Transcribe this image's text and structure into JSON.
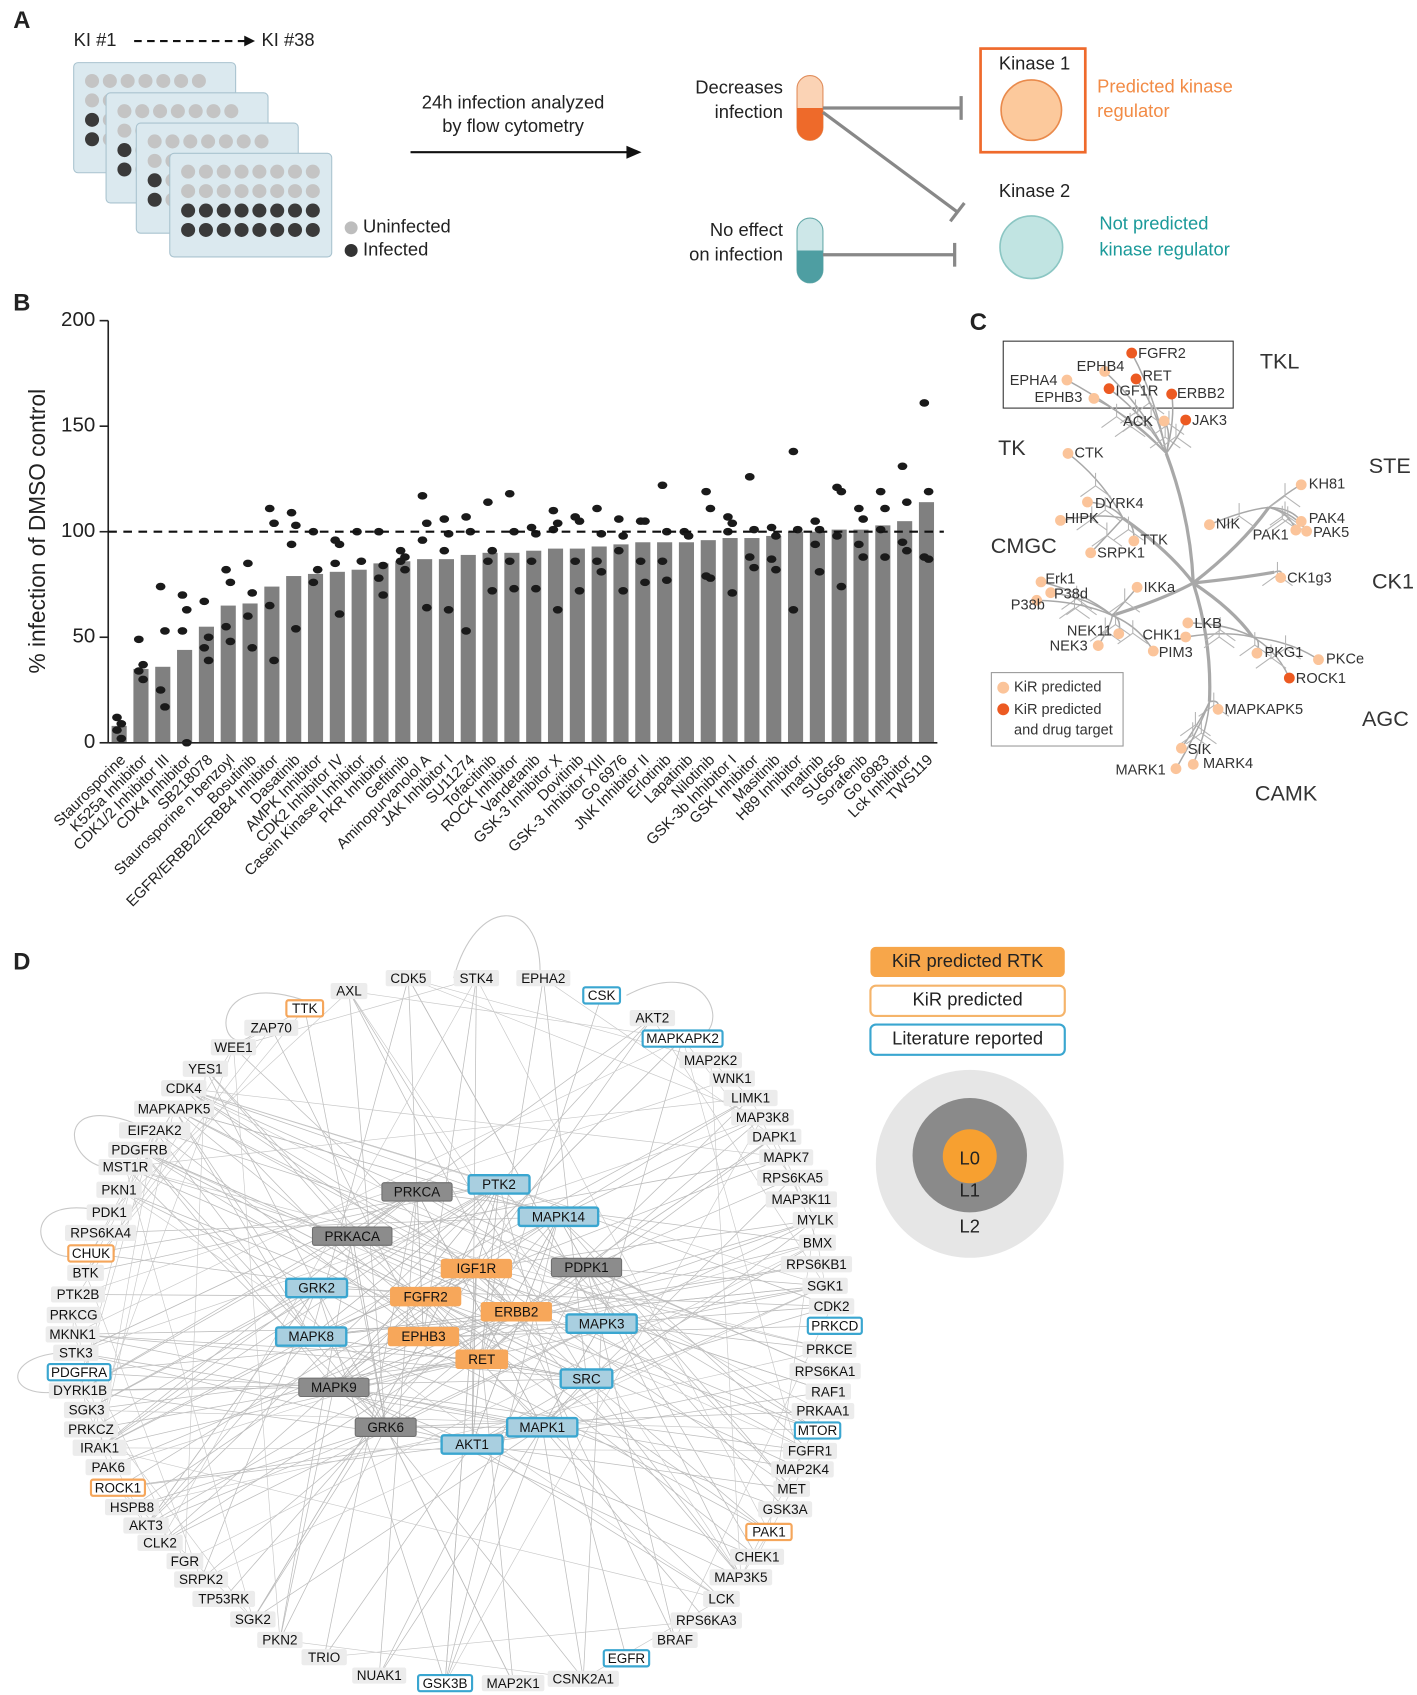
{
  "panel_labels": [
    "A",
    "B",
    "C",
    "D"
  ],
  "panel_a": {
    "start": "KI #1",
    "end": "KI #38",
    "uninfected": "Uninfected",
    "infected": "Infected",
    "assay_lines": [
      "24h infection analyzed",
      "by flow cytometry"
    ],
    "decrease_lines": [
      "Decreases",
      "infection"
    ],
    "noeffect_lines": [
      "No effect",
      "on infection"
    ],
    "kinase1": "Kinase 1",
    "kinase2": "Kinase 2",
    "predicted_lines": [
      "Predicted kinase",
      "regulator"
    ],
    "notpredicted_lines": [
      "Not predicted",
      "kinase regulator"
    ]
  },
  "chart_data": {
    "type": "bar",
    "ylabel": "% infection of DMSO control",
    "color": "#808080",
    "dot_color": "#1a1a1a",
    "categories": [
      "Staurosporine",
      "K525a Inhibitor",
      "CDK1/2 Inhibitor III",
      "CDK4 Inhibitor",
      "SB218078",
      "Staurosporine n benzoyl",
      "Bosutinib",
      "EGFR/ERBB2/ERBB4 Inhibitor",
      "Dasatinib",
      "AMPK Inhibitor",
      "CDK2 Inhibitor IV",
      "Casein Kinase I Inhibitor",
      "PKR Inhibitor",
      "Gefitinib",
      "Aminopurvanolol A",
      "JAK Inhibitor I",
      "SU11274",
      "Tofacitinib",
      "ROCK Inhibitor",
      "Vandetanib",
      "GSK-3 Inhibitor X",
      "Dovitinib",
      "GSK-3 Inhibitor XIII",
      "Go 6976",
      "JNK Inhibitor II",
      "Erlotinib",
      "Lapatinib",
      "Nilotinib",
      "GSK-3b Inhibitor I",
      "GSK Inhibitor",
      "Masitinib",
      "H89 Inhibitor",
      "Imatinib",
      "SU6656",
      "Sorafenib",
      "Go 6983",
      "Lck Inhibitor",
      "TWS119"
    ],
    "values": [
      8,
      35,
      36,
      44,
      55,
      65,
      66,
      74,
      79,
      80,
      81,
      82,
      85,
      86,
      87,
      87,
      89,
      90,
      90,
      91,
      92,
      92,
      93,
      94,
      95,
      95,
      95,
      96,
      97,
      97,
      98,
      100,
      100,
      101,
      101,
      103,
      105,
      114
    ],
    "replicates": [
      [
        12,
        9,
        6,
        2
      ],
      [
        49,
        37,
        34,
        30
      ],
      [
        74,
        53,
        25,
        17
      ],
      [
        70,
        63,
        53,
        0
      ],
      [
        67,
        50,
        45,
        39
      ],
      [
        82,
        76,
        55,
        48
      ],
      [
        85,
        71,
        60,
        45
      ],
      [
        111,
        104,
        65,
        39
      ],
      [
        109,
        103,
        94,
        54
      ],
      [
        100,
        82,
        76
      ],
      [
        96,
        94,
        85,
        61
      ],
      [
        100,
        86
      ],
      [
        100,
        84,
        78,
        70
      ],
      [
        91,
        88,
        86,
        82
      ],
      [
        117,
        104,
        96,
        64
      ],
      [
        106,
        99,
        91,
        63
      ],
      [
        107,
        100,
        53
      ],
      [
        114,
        91,
        86,
        72
      ],
      [
        118,
        100,
        86,
        73
      ],
      [
        102,
        99,
        86,
        73
      ],
      [
        110,
        104,
        101,
        63
      ],
      [
        107,
        105,
        86,
        72
      ],
      [
        111,
        99,
        86,
        81
      ],
      [
        106,
        98,
        91,
        72
      ],
      [
        105,
        105,
        86,
        76
      ],
      [
        122,
        100,
        86,
        77
      ],
      [
        100,
        98
      ],
      [
        119,
        111,
        79,
        78
      ],
      [
        107,
        104,
        100,
        71
      ],
      [
        126,
        101,
        88,
        83
      ],
      [
        102,
        98,
        87,
        82
      ],
      [
        138,
        101,
        63
      ],
      [
        105,
        101,
        94,
        81
      ],
      [
        121,
        119,
        98,
        74
      ],
      [
        111,
        106,
        94,
        88
      ],
      [
        119,
        111,
        101,
        88
      ],
      [
        131,
        114,
        95,
        91
      ],
      [
        161,
        119,
        88,
        87
      ]
    ],
    "reference_line": 100,
    "ylim": [
      0,
      200
    ],
    "yticks": [
      0,
      50,
      100,
      150,
      200
    ]
  },
  "panel_c": {
    "groups": [
      "TKL",
      "TK",
      "STE",
      "CMGC",
      "CK1",
      "AGC",
      "CAMK"
    ],
    "legend": {
      "predicted": "KiR predicted",
      "target_lines": [
        "KiR predicted",
        "and drug target"
      ]
    },
    "colors": {
      "predicted": "#fbc49a",
      "target": "#ec5a22"
    },
    "kinases": [
      {
        "label": "FGFR2",
        "kind": "target"
      },
      {
        "label": "EPHB4",
        "kind": "predicted"
      },
      {
        "label": "RET",
        "kind": "target"
      },
      {
        "label": "EPHA4",
        "kind": "predicted"
      },
      {
        "label": "IGF1R",
        "kind": "target"
      },
      {
        "label": "ERBB2",
        "kind": "target"
      },
      {
        "label": "EPHB3",
        "kind": "predicted"
      },
      {
        "label": "ACK",
        "kind": "predicted"
      },
      {
        "label": "JAK3",
        "kind": "target"
      },
      {
        "label": "CTK",
        "kind": "predicted"
      },
      {
        "label": "KH81",
        "kind": "predicted"
      },
      {
        "label": "DYRK4",
        "kind": "predicted"
      },
      {
        "label": "HIPK",
        "kind": "predicted"
      },
      {
        "label": "NIK",
        "kind": "predicted"
      },
      {
        "label": "PAK4",
        "kind": "predicted"
      },
      {
        "label": "PAK1",
        "kind": "predicted"
      },
      {
        "label": "PAK5",
        "kind": "predicted"
      },
      {
        "label": "TTK",
        "kind": "predicted"
      },
      {
        "label": "SRPK1",
        "kind": "predicted"
      },
      {
        "label": "CK1g3",
        "kind": "predicted"
      },
      {
        "label": "Erk1",
        "kind": "predicted"
      },
      {
        "label": "P38d",
        "kind": "predicted"
      },
      {
        "label": "P38b",
        "kind": "predicted"
      },
      {
        "label": "IKKa",
        "kind": "predicted"
      },
      {
        "label": "NEK11",
        "kind": "predicted"
      },
      {
        "label": "CHK1",
        "kind": "predicted"
      },
      {
        "label": "LKB",
        "kind": "predicted"
      },
      {
        "label": "NEK3",
        "kind": "predicted"
      },
      {
        "label": "PIM3",
        "kind": "predicted"
      },
      {
        "label": "PKG1",
        "kind": "predicted"
      },
      {
        "label": "PKCe",
        "kind": "predicted"
      },
      {
        "label": "ROCK1",
        "kind": "target"
      },
      {
        "label": "MAPKAPK5",
        "kind": "predicted"
      },
      {
        "label": "SIK",
        "kind": "predicted"
      },
      {
        "label": "MARK4",
        "kind": "predicted"
      },
      {
        "label": "MARK1",
        "kind": "predicted"
      }
    ]
  },
  "panel_d": {
    "legend": {
      "rtk": "KiR predicted RTK",
      "predicted": "KiR predicted",
      "literature": "Literature reported"
    },
    "layers": [
      "L0",
      "L1",
      "L2"
    ],
    "outer": [
      {
        "label": "CDK5",
        "kind": "plain"
      },
      {
        "label": "STK4",
        "kind": "plain"
      },
      {
        "label": "EPHA2",
        "kind": "plain"
      },
      {
        "label": "CSK",
        "kind": "literature"
      },
      {
        "label": "AKT2",
        "kind": "plain"
      },
      {
        "label": "MAPKAPK2",
        "kind": "literature"
      },
      {
        "label": "MAP2K2",
        "kind": "plain"
      },
      {
        "label": "WNK1",
        "kind": "plain"
      },
      {
        "label": "LIMK1",
        "kind": "plain"
      },
      {
        "label": "MAP3K8",
        "kind": "plain"
      },
      {
        "label": "DAPK1",
        "kind": "plain"
      },
      {
        "label": "MAPK7",
        "kind": "plain"
      },
      {
        "label": "RPS6KA5",
        "kind": "plain"
      },
      {
        "label": "MAP3K11",
        "kind": "plain"
      },
      {
        "label": "MYLK",
        "kind": "plain"
      },
      {
        "label": "BMX",
        "kind": "plain"
      },
      {
        "label": "RPS6KB1",
        "kind": "plain"
      },
      {
        "label": "SGK1",
        "kind": "plain"
      },
      {
        "label": "CDK2",
        "kind": "plain"
      },
      {
        "label": "PRKCD",
        "kind": "literature"
      },
      {
        "label": "PRKCE",
        "kind": "plain"
      },
      {
        "label": "RPS6KA1",
        "kind": "plain"
      },
      {
        "label": "RAF1",
        "kind": "plain"
      },
      {
        "label": "PRKAA1",
        "kind": "plain"
      },
      {
        "label": "MTOR",
        "kind": "literature"
      },
      {
        "label": "FGFR1",
        "kind": "plain"
      },
      {
        "label": "MAP2K4",
        "kind": "plain"
      },
      {
        "label": "MET",
        "kind": "plain"
      },
      {
        "label": "GSK3A",
        "kind": "plain"
      },
      {
        "label": "PAK1",
        "kind": "predicted"
      },
      {
        "label": "CHEK1",
        "kind": "plain"
      },
      {
        "label": "MAP3K5",
        "kind": "plain"
      },
      {
        "label": "LCK",
        "kind": "plain"
      },
      {
        "label": "RPS6KA3",
        "kind": "plain"
      },
      {
        "label": "BRAF",
        "kind": "plain"
      },
      {
        "label": "EGFR",
        "kind": "literature"
      },
      {
        "label": "CSNK2A1",
        "kind": "plain"
      },
      {
        "label": "MAP2K1",
        "kind": "plain"
      },
      {
        "label": "GSK3B",
        "kind": "literature"
      },
      {
        "label": "NUAK1",
        "kind": "plain"
      },
      {
        "label": "TRIO",
        "kind": "plain"
      },
      {
        "label": "PKN2",
        "kind": "plain"
      },
      {
        "label": "SGK2",
        "kind": "plain"
      },
      {
        "label": "TP53RK",
        "kind": "plain"
      },
      {
        "label": "SRPK2",
        "kind": "plain"
      },
      {
        "label": "FGR",
        "kind": "plain"
      },
      {
        "label": "CLK2",
        "kind": "plain"
      },
      {
        "label": "AKT3",
        "kind": "plain"
      },
      {
        "label": "HSPB8",
        "kind": "plain"
      },
      {
        "label": "ROCK1",
        "kind": "predicted"
      },
      {
        "label": "PAK6",
        "kind": "plain"
      },
      {
        "label": "IRAK1",
        "kind": "plain"
      },
      {
        "label": "PRKCZ",
        "kind": "plain"
      },
      {
        "label": "SGK3",
        "kind": "plain"
      },
      {
        "label": "DYRK1B",
        "kind": "plain"
      },
      {
        "label": "PDGFRA",
        "kind": "literature"
      },
      {
        "label": "STK3",
        "kind": "plain"
      },
      {
        "label": "MKNK1",
        "kind": "plain"
      },
      {
        "label": "PRKCG",
        "kind": "plain"
      },
      {
        "label": "PTK2B",
        "kind": "plain"
      },
      {
        "label": "BTK",
        "kind": "plain"
      },
      {
        "label": "CHUK",
        "kind": "predicted"
      },
      {
        "label": "RPS6KA4",
        "kind": "plain"
      },
      {
        "label": "PDK1",
        "kind": "plain"
      },
      {
        "label": "PKN1",
        "kind": "plain"
      },
      {
        "label": "MST1R",
        "kind": "plain"
      },
      {
        "label": "PDGFRB",
        "kind": "plain"
      },
      {
        "label": "EIF2AK2",
        "kind": "plain"
      },
      {
        "label": "MAPKAPK5",
        "kind": "plain"
      },
      {
        "label": "CDK4",
        "kind": "plain"
      },
      {
        "label": "YES1",
        "kind": "plain"
      },
      {
        "label": "WEE1",
        "kind": "plain"
      },
      {
        "label": "ZAP70",
        "kind": "plain"
      },
      {
        "label": "TTK",
        "kind": "predicted"
      },
      {
        "label": "AXL",
        "kind": "plain"
      }
    ],
    "inner": [
      {
        "label": "PRKCA",
        "kind": "core"
      },
      {
        "label": "PTK2",
        "kind": "core-literature"
      },
      {
        "label": "MAPK14",
        "kind": "core-literature"
      },
      {
        "label": "PRKACA",
        "kind": "core"
      },
      {
        "label": "IGF1R",
        "kind": "rtk"
      },
      {
        "label": "PDPK1",
        "kind": "core"
      },
      {
        "label": "GRK2",
        "kind": "core-literature"
      },
      {
        "label": "FGFR2",
        "kind": "rtk"
      },
      {
        "label": "ERBB2",
        "kind": "rtk"
      },
      {
        "label": "MAPK3",
        "kind": "core-literature"
      },
      {
        "label": "MAPK8",
        "kind": "core-literature"
      },
      {
        "label": "EPHB3",
        "kind": "rtk"
      },
      {
        "label": "RET",
        "kind": "rtk"
      },
      {
        "label": "SRC",
        "kind": "core-literature"
      },
      {
        "label": "MAPK9",
        "kind": "core"
      },
      {
        "label": "GRK6",
        "kind": "core"
      },
      {
        "label": "MAPK1",
        "kind": "core-literature"
      },
      {
        "label": "AKT1",
        "kind": "core-literature"
      }
    ]
  }
}
